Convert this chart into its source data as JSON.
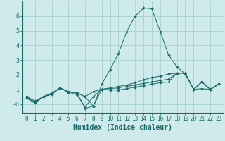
{
  "title": "",
  "xlabel": "Humidex (Indice chaleur)",
  "bg_color": "#ceeaea",
  "grid_color": "#a8d0d0",
  "line_color": "#1a6b6b",
  "xlim": [
    -0.5,
    23.5
  ],
  "ylim": [
    -0.6,
    7.0
  ],
  "xticks": [
    0,
    1,
    2,
    3,
    4,
    5,
    6,
    7,
    8,
    9,
    10,
    11,
    12,
    13,
    14,
    15,
    16,
    17,
    18,
    19,
    20,
    21,
    22,
    23
  ],
  "yticks": [
    0,
    1,
    2,
    3,
    4,
    5,
    6
  ],
  "ytick_labels": [
    "-0",
    "1",
    "2",
    "3",
    "4",
    "5",
    "6"
  ],
  "series": [
    [
      0.5,
      0.2,
      0.5,
      0.7,
      1.1,
      0.8,
      0.8,
      0.5,
      0.85,
      1.0,
      1.05,
      1.1,
      1.2,
      1.3,
      1.4,
      1.5,
      1.6,
      1.7,
      2.1,
      2.1,
      1.0,
      1.5,
      1.0,
      1.35
    ],
    [
      0.4,
      0.05,
      0.5,
      0.65,
      1.1,
      0.8,
      0.65,
      -0.2,
      0.5,
      1.0,
      0.95,
      0.95,
      1.05,
      1.15,
      1.25,
      1.35,
      1.45,
      1.5,
      2.1,
      2.1,
      1.0,
      1.05,
      1.0,
      1.35
    ],
    [
      0.5,
      0.1,
      0.5,
      0.75,
      1.1,
      0.8,
      0.8,
      -0.3,
      -0.15,
      1.0,
      1.1,
      1.2,
      1.3,
      1.45,
      1.65,
      1.8,
      1.9,
      2.05,
      2.1,
      2.1,
      1.0,
      1.5,
      1.0,
      1.35
    ],
    [
      0.5,
      0.1,
      0.5,
      0.7,
      1.1,
      0.85,
      0.75,
      0.5,
      -0.15,
      1.35,
      2.35,
      3.45,
      4.95,
      6.0,
      6.55,
      6.5,
      4.95,
      3.35,
      2.55,
      2.05,
      1.0,
      1.5,
      1.0,
      1.35
    ]
  ],
  "spine_color": "#1a6b6b",
  "tick_fontsize": 5.5,
  "xlabel_fontsize": 7.0
}
